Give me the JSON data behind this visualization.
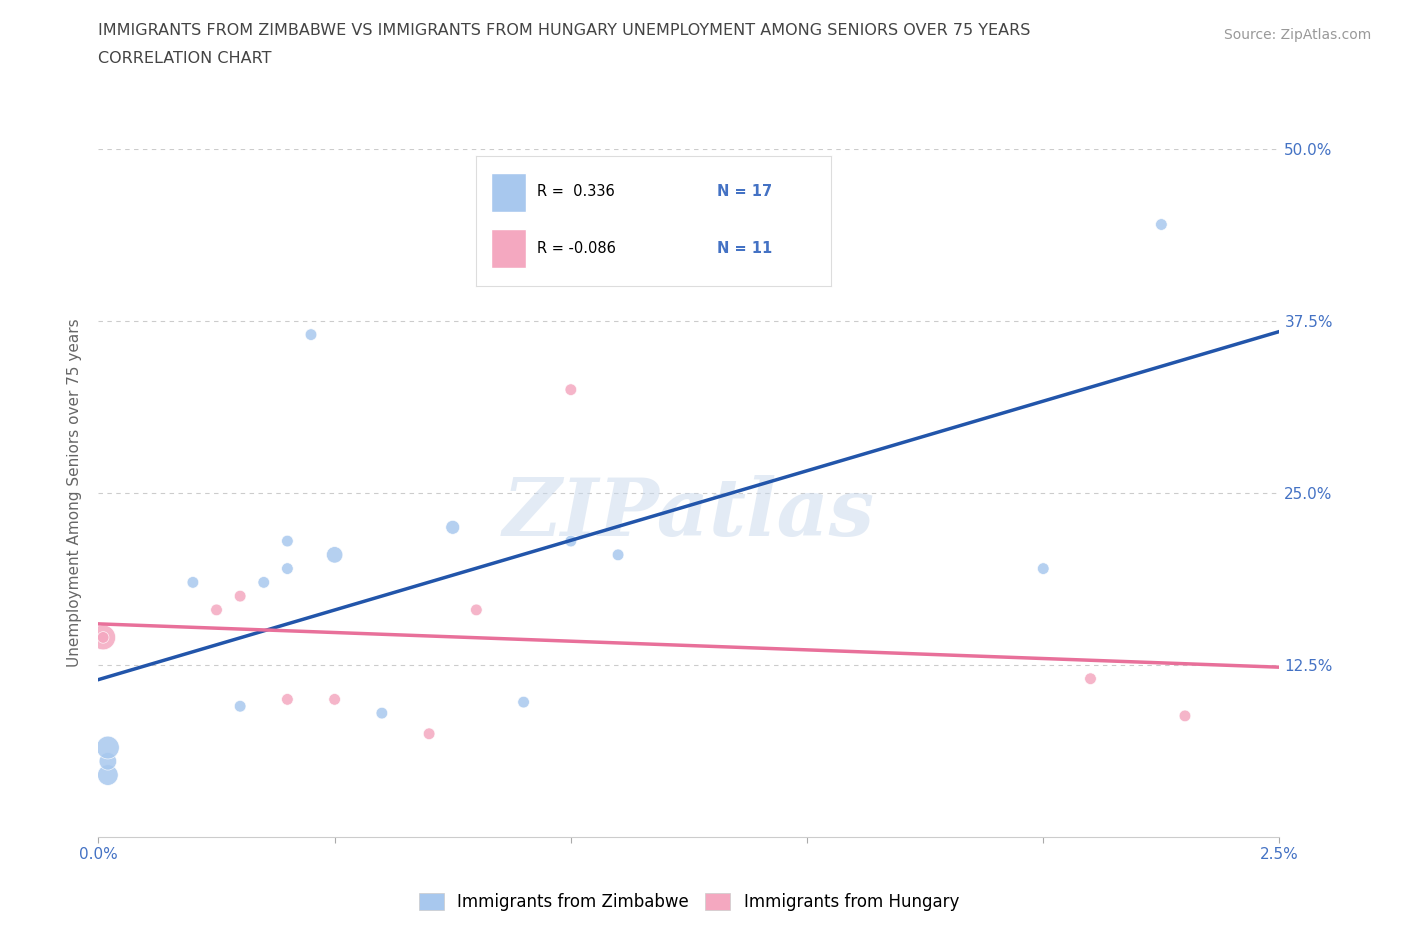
{
  "title_line1": "IMMIGRANTS FROM ZIMBABWE VS IMMIGRANTS FROM HUNGARY UNEMPLOYMENT AMONG SENIORS OVER 75 YEARS",
  "title_line2": "CORRELATION CHART",
  "source": "Source: ZipAtlas.com",
  "ylabel": "Unemployment Among Seniors over 75 years",
  "xlim": [
    0.0,
    0.025
  ],
  "ylim": [
    0.0,
    0.5
  ],
  "xticks": [
    0.0,
    0.005,
    0.01,
    0.015,
    0.02,
    0.025
  ],
  "xticklabels": [
    "0.0%",
    "",
    "",
    "",
    "",
    "2.5%"
  ],
  "yticks": [
    0.0,
    0.125,
    0.25,
    0.375,
    0.5
  ],
  "yticklabels": [
    "",
    "12.5%",
    "25.0%",
    "37.5%",
    "50.0%"
  ],
  "zimbabwe_color": "#A8C8EE",
  "hungary_color": "#F4A8C0",
  "line_zimbabwe_color": "#2255AA",
  "line_hungary_color": "#E8709A",
  "watermark_text": "ZIPatlas",
  "legend_R_zimbabwe": "R =  0.336",
  "legend_N_zimbabwe": "N = 17",
  "legend_R_hungary": "R = -0.086",
  "legend_N_hungary": "N = 11",
  "legend_label_zimbabwe": "Immigrants from Zimbabwe",
  "legend_label_hungary": "Immigrants from Hungary",
  "zimbabwe_x": [
    0.0002,
    0.0002,
    0.0002,
    0.002,
    0.003,
    0.0035,
    0.004,
    0.004,
    0.0045,
    0.005,
    0.006,
    0.0075,
    0.009,
    0.01,
    0.011,
    0.02,
    0.0225
  ],
  "zimbabwe_y": [
    0.045,
    0.055,
    0.065,
    0.185,
    0.095,
    0.185,
    0.215,
    0.195,
    0.365,
    0.205,
    0.09,
    0.225,
    0.098,
    0.215,
    0.205,
    0.195,
    0.445
  ],
  "zimbabwe_size": [
    220,
    160,
    270,
    70,
    70,
    70,
    70,
    70,
    70,
    140,
    70,
    100,
    70,
    70,
    70,
    70,
    70
  ],
  "hungary_x": [
    0.0001,
    0.0001,
    0.0025,
    0.003,
    0.004,
    0.005,
    0.007,
    0.008,
    0.01,
    0.021,
    0.023
  ],
  "hungary_y": [
    0.145,
    0.145,
    0.165,
    0.175,
    0.1,
    0.1,
    0.075,
    0.165,
    0.325,
    0.115,
    0.088
  ],
  "hungary_size": [
    320,
    70,
    70,
    70,
    70,
    70,
    70,
    70,
    70,
    70,
    70
  ],
  "grid_color": "#CCCCCC",
  "background_color": "#FFFFFF",
  "tick_color": "#4472C4",
  "title_color": "#444444",
  "source_color": "#999999"
}
